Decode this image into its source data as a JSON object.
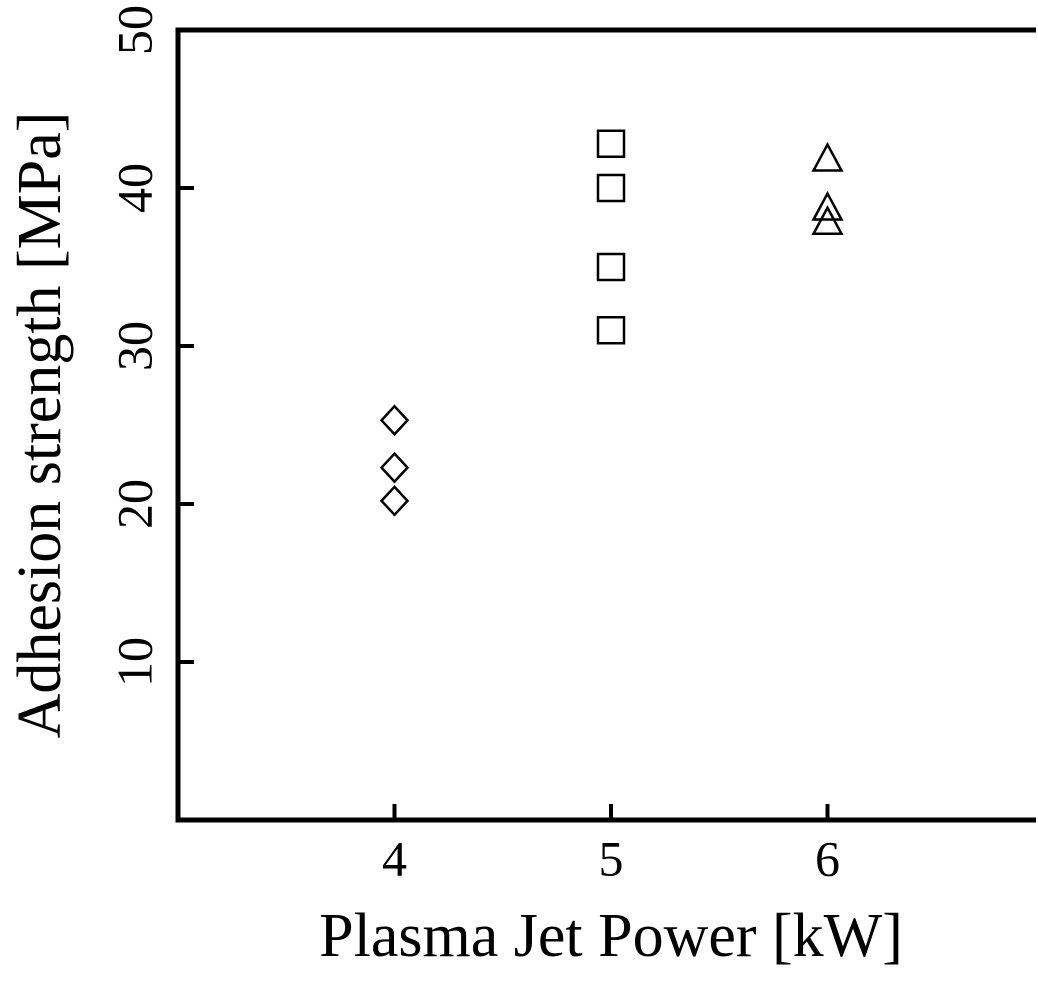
{
  "chart_data": {
    "type": "scatter",
    "x_label": "Plasma Jet Power [kW]",
    "y_label": "Adhesion strength [MPa]",
    "xlim": [
      3,
      7
    ],
    "xticks": [
      4,
      5,
      6
    ],
    "ylim": [
      0,
      50
    ],
    "yticks": [
      10,
      20,
      30,
      40,
      50
    ],
    "series": [
      {
        "marker": "diamond",
        "color": "#000000",
        "x": [
          4,
          4,
          4
        ],
        "values": [
          25.3,
          22.3,
          20.2
        ]
      },
      {
        "marker": "square",
        "color": "#000000",
        "x": [
          5,
          5,
          5,
          5
        ],
        "values": [
          42.8,
          40.0,
          35.0,
          31.0
        ]
      },
      {
        "marker": "triangle",
        "color": "#000000",
        "x": [
          6,
          6,
          6
        ],
        "values": [
          41.8,
          38.7,
          37.8
        ]
      }
    ]
  }
}
